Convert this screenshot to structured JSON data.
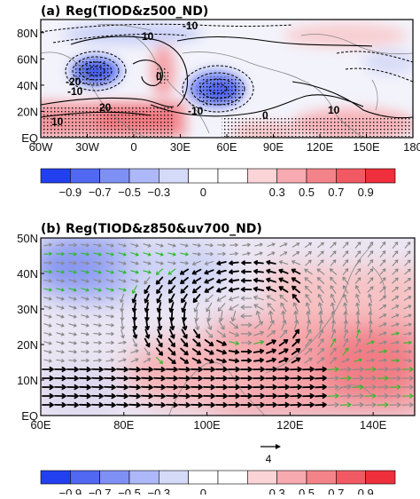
{
  "panels": {
    "a": {
      "label": "(a)",
      "title": "Reg(TIOD&z500_ND)",
      "xticks": [
        "60W",
        "30W",
        "0",
        "30E",
        "60E",
        "90E",
        "120E",
        "150E",
        "180"
      ],
      "yticks": [
        "EQ",
        "20N",
        "40N",
        "60N",
        "80N"
      ],
      "contour_labels": [
        "-10",
        "10",
        "-20",
        "-10",
        "-10",
        "0",
        "10",
        "20",
        "10",
        "0",
        "10",
        "-0"
      ]
    },
    "b": {
      "label": "(b)",
      "title": "Reg(TIOD&z850&uv700_ND)",
      "xticks": [
        "60E",
        "80E",
        "100E",
        "120E",
        "140E"
      ],
      "yticks": [
        "EQ",
        "10N",
        "20N",
        "30N",
        "40N",
        "50N"
      ],
      "reference_vector_label": "4"
    }
  },
  "colorbar": {
    "ticks": [
      "−0.9",
      "−0.7",
      "−0.5",
      "−0.3",
      "0",
      "0.3",
      "0.5",
      "0.7",
      "0.9"
    ],
    "colors": [
      "#2340f0",
      "#5068f2",
      "#7f90f5",
      "#adb8f8",
      "#d5daf9",
      "#ffffff",
      "#ffffff",
      "#fad4d6",
      "#f7aab0",
      "#f48389",
      "#f25a63",
      "#ef2f3b"
    ]
  },
  "chart_data": [
    {
      "type": "heatmap",
      "title": "Reg(TIOD&z500_ND)",
      "x_range": [
        -60,
        180
      ],
      "y_range": [
        0,
        90
      ],
      "x_tick_labels": [
        "60W",
        "30W",
        "0",
        "30E",
        "60E",
        "90E",
        "120E",
        "150E",
        "180"
      ],
      "y_tick_labels": [
        "EQ",
        "20N",
        "40N",
        "60N",
        "80N"
      ],
      "contour_levels": [
        -20,
        -10,
        0,
        10,
        20
      ],
      "shading_levels": [
        -0.9,
        -0.7,
        -0.5,
        -0.3,
        0,
        0.3,
        0.5,
        0.7,
        0.9
      ]
    },
    {
      "type": "heatmap",
      "title": "Reg(TIOD&z850&uv700_ND)",
      "x_range": [
        60,
        150
      ],
      "y_range": [
        0,
        50
      ],
      "x_tick_labels": [
        "60E",
        "80E",
        "100E",
        "120E",
        "140E"
      ],
      "y_tick_labels": [
        "EQ",
        "10N",
        "20N",
        "30N",
        "40N",
        "50N"
      ],
      "reference_vector": 4,
      "shading_levels": [
        -0.9,
        -0.7,
        -0.5,
        -0.3,
        0,
        0.3,
        0.5,
        0.7,
        0.9
      ]
    }
  ]
}
